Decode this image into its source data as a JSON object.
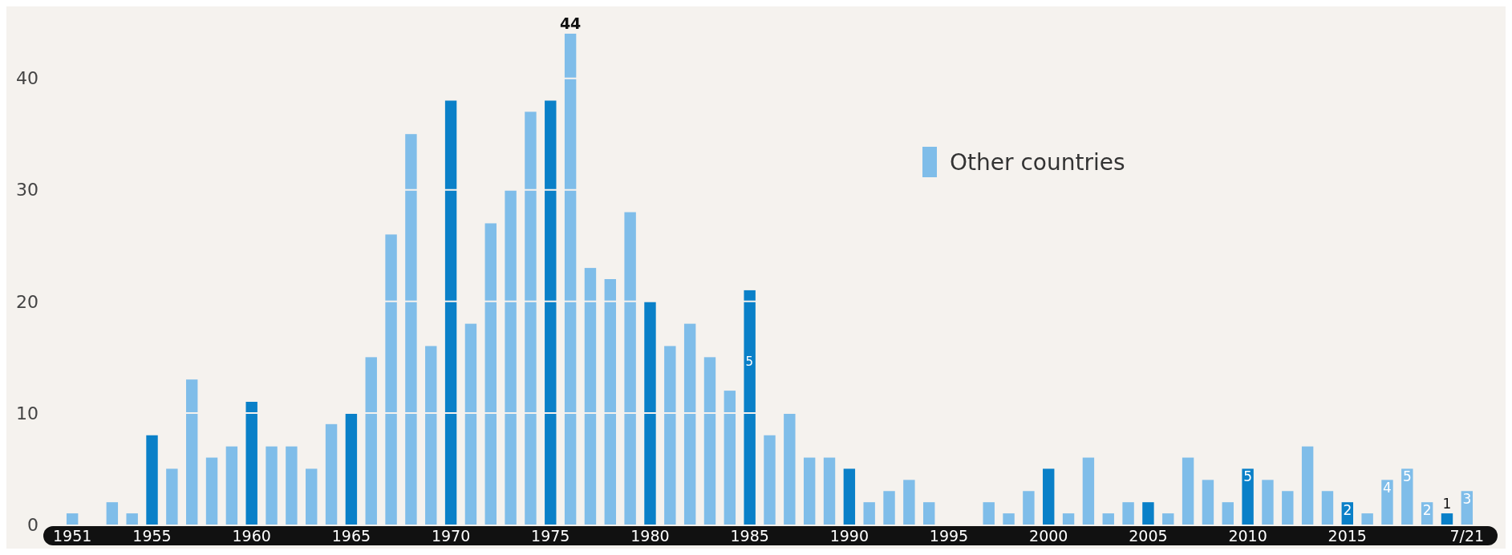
{
  "chart_data": {
    "type": "bar",
    "categories": [
      "1951",
      null,
      null,
      null,
      "1955",
      null,
      null,
      null,
      null,
      "1960",
      null,
      null,
      null,
      null,
      "1965",
      null,
      null,
      null,
      null,
      "1970",
      null,
      null,
      null,
      null,
      "1975",
      null,
      null,
      null,
      null,
      "1980",
      null,
      null,
      null,
      null,
      "1985",
      null,
      null,
      null,
      null,
      "1990",
      null,
      null,
      null,
      null,
      "1995",
      null,
      null,
      null,
      null,
      "2000",
      null,
      null,
      null,
      null,
      "2005",
      null,
      null,
      null,
      null,
      "2010",
      null,
      null,
      null,
      null,
      "2015",
      null,
      null,
      null,
      null,
      null,
      "7/21"
    ],
    "series": [
      {
        "name": "Other countries",
        "color": "#7fbde9",
        "values": [
          1,
          0,
          2,
          1,
          8,
          5,
          13,
          6,
          7,
          11,
          7,
          7,
          5,
          9,
          10,
          15,
          26,
          35,
          16,
          38,
          18,
          27,
          30,
          37,
          38,
          44,
          23,
          22,
          28,
          20,
          16,
          18,
          15,
          12,
          21,
          8,
          10,
          6,
          6,
          5,
          2,
          3,
          4,
          2,
          0,
          0,
          2,
          1,
          3,
          5,
          1,
          6,
          1,
          2,
          2,
          1,
          6,
          4,
          2,
          5,
          4,
          3,
          7,
          3,
          2,
          1,
          4,
          5,
          2,
          1,
          3
        ],
        "colors": [
          "#7fbde9",
          "#7fbde9",
          "#7fbde9",
          "#7fbde9",
          "#0a80c8",
          "#7fbde9",
          "#7fbde9",
          "#7fbde9",
          "#7fbde9",
          "#0a80c8",
          "#7fbde9",
          "#7fbde9",
          "#7fbde9",
          "#7fbde9",
          "#0a80c8",
          "#7fbde9",
          "#7fbde9",
          "#7fbde9",
          "#7fbde9",
          "#0a80c8",
          "#7fbde9",
          "#7fbde9",
          "#7fbde9",
          "#7fbde9",
          "#0a80c8",
          "#7fbde9",
          "#7fbde9",
          "#7fbde9",
          "#7fbde9",
          "#0a80c8",
          "#7fbde9",
          "#7fbde9",
          "#7fbde9",
          "#7fbde9",
          "#0a80c8",
          "#7fbde9",
          "#7fbde9",
          "#7fbde9",
          "#7fbde9",
          "#0a80c8",
          "#7fbde9",
          "#7fbde9",
          "#7fbde9",
          "#7fbde9",
          "#0a80c8",
          "#7fbde9",
          "#7fbde9",
          "#7fbde9",
          "#7fbde9",
          "#0a80c8",
          "#7fbde9",
          "#7fbde9",
          "#7fbde9",
          "#7fbde9",
          "#0a80c8",
          "#7fbde9",
          "#7fbde9",
          "#7fbde9",
          "#7fbde9",
          "#0a80c8",
          "#7fbde9",
          "#7fbde9",
          "#7fbde9",
          "#7fbde9",
          "#0a80c8",
          "#7fbde9",
          "#7fbde9",
          "#7fbde9",
          "#7fbde9",
          "#0a80c8",
          "#7fbde9"
        ],
        "value_labels": [
          null,
          null,
          null,
          null,
          null,
          null,
          null,
          null,
          null,
          null,
          null,
          null,
          null,
          null,
          null,
          null,
          null,
          null,
          null,
          null,
          null,
          null,
          null,
          null,
          null,
          "44",
          null,
          null,
          null,
          null,
          null,
          null,
          null,
          null,
          null,
          null,
          null,
          null,
          null,
          null,
          null,
          null,
          null,
          null,
          null,
          null,
          null,
          null,
          null,
          null,
          null,
          null,
          null,
          null,
          null,
          null,
          null,
          null,
          null,
          "5",
          null,
          null,
          null,
          null,
          "2",
          null,
          "4",
          "5",
          "2",
          "1",
          "3"
        ]
      }
    ],
    "annotations": [
      "5"
    ],
    "ylim": [
      0,
      44
    ],
    "yticks": [
      0,
      10,
      20,
      30,
      40
    ],
    "grid": "y",
    "legend": "right"
  }
}
